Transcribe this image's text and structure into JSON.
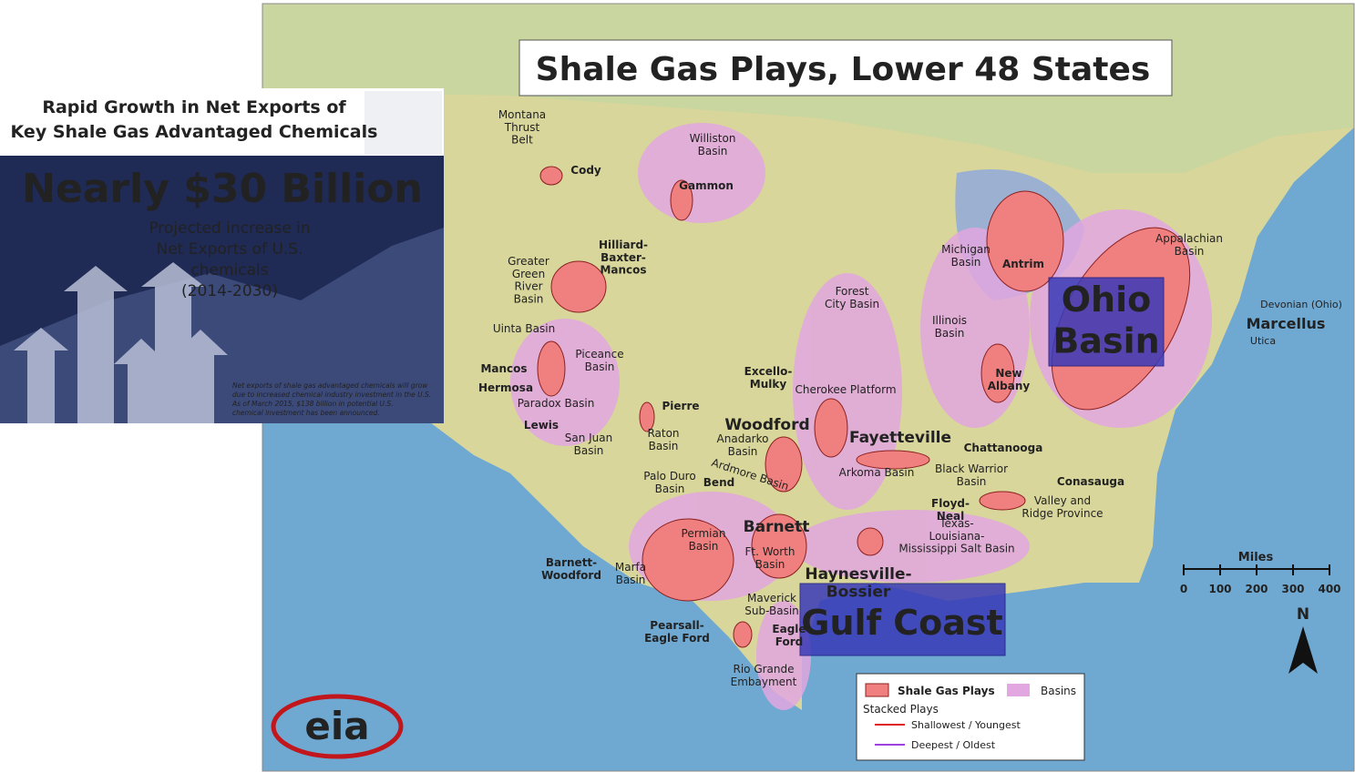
{
  "infographic": {
    "heading": [
      "Rapid Growth in Net Exports of",
      "Key Shale Gas Advantaged Chemicals"
    ],
    "headline": "Nearly $30 Billion",
    "subtitle": [
      "Projected increase in",
      "Net Exports of U.S.",
      "chemicals",
      "(2014-2030)"
    ],
    "footnote": [
      "Net exports of shale gas advantaged chemicals will grow",
      "due to increased chemical industry investment in the U.S.",
      "As of March 2015, $138 billion in potential U.S.",
      "chemical investment has been announced."
    ]
  },
  "map": {
    "title": "Shale Gas Plays, Lower 48 States",
    "labels": [
      [
        "Montana",
        "Thrust",
        "Belt"
      ],
      [
        "Cody"
      ],
      [
        "Williston",
        "Basin"
      ],
      [
        "Gammon"
      ],
      [
        "Hilliard-",
        "Baxter-",
        "Mancos"
      ],
      [
        "Greater",
        "Green",
        "River",
        "Basin"
      ],
      [
        "Uinta Basin"
      ],
      [
        "Piceance",
        "Basin"
      ],
      [
        "Mancos"
      ],
      [
        "Hermosa"
      ],
      [
        "Paradox Basin"
      ],
      [
        "Pierre"
      ],
      [
        "Lewis"
      ],
      [
        "San Juan",
        "Basin"
      ],
      [
        "Raton",
        "Basin"
      ],
      [
        "Forest",
        "City Basin"
      ],
      [
        "Michigan",
        "Basin"
      ],
      [
        "Antrim"
      ],
      [
        "Illinois",
        "Basin"
      ],
      [
        "New",
        "Albany"
      ],
      [
        "Excello-",
        "Mulky"
      ],
      [
        "Cherokee Platform"
      ],
      [
        "Woodford"
      ],
      [
        "Fayetteville"
      ],
      [
        "Anadarko",
        "Basin"
      ],
      [
        "Arkoma Basin"
      ],
      [
        "Ardmore Basin"
      ],
      [
        "Chattanooga"
      ],
      [
        "Black Warrior",
        "Basin"
      ],
      [
        "Conasauga"
      ],
      [
        "Valley and",
        "Ridge Province"
      ],
      [
        "Floyd-",
        "Neal"
      ],
      [
        "Palo Duro",
        "Basin"
      ],
      [
        "Bend"
      ],
      [
        "Barnett"
      ],
      [
        "Texas-",
        "Louisiana-",
        "Mississippi Salt Basin"
      ],
      [
        "Permian",
        "Basin"
      ],
      [
        "Ft. Worth",
        "Basin"
      ],
      [
        "Barnett-",
        "Woodford"
      ],
      [
        "Marfa",
        "Basin"
      ],
      [
        "Haynesville-",
        "Bossier"
      ],
      [
        "Maverick",
        "Sub-Basin"
      ],
      [
        "Pearsall-",
        "Eagle Ford"
      ],
      [
        "Eagle",
        "Ford"
      ],
      [
        "Rio Grande",
        "Embayment"
      ],
      [
        "Appalachian",
        "Basin"
      ],
      [
        "Devonian (Ohio)"
      ],
      [
        "Marcellus"
      ],
      [
        "Utica"
      ]
    ],
    "highlights": [
      [
        "Ohio",
        "Basin"
      ],
      [
        "Gulf Coast"
      ]
    ],
    "legend": {
      "plays": "Shale Gas Plays",
      "basins": "Basins",
      "stacked": "Stacked Plays",
      "shallow": "Shallowest / Youngest",
      "deep": "Deepest / Oldest"
    },
    "scale": {
      "title": "Miles",
      "ticks": [
        0,
        100,
        200,
        300,
        400
      ]
    },
    "north": "N",
    "logo": "eia"
  }
}
